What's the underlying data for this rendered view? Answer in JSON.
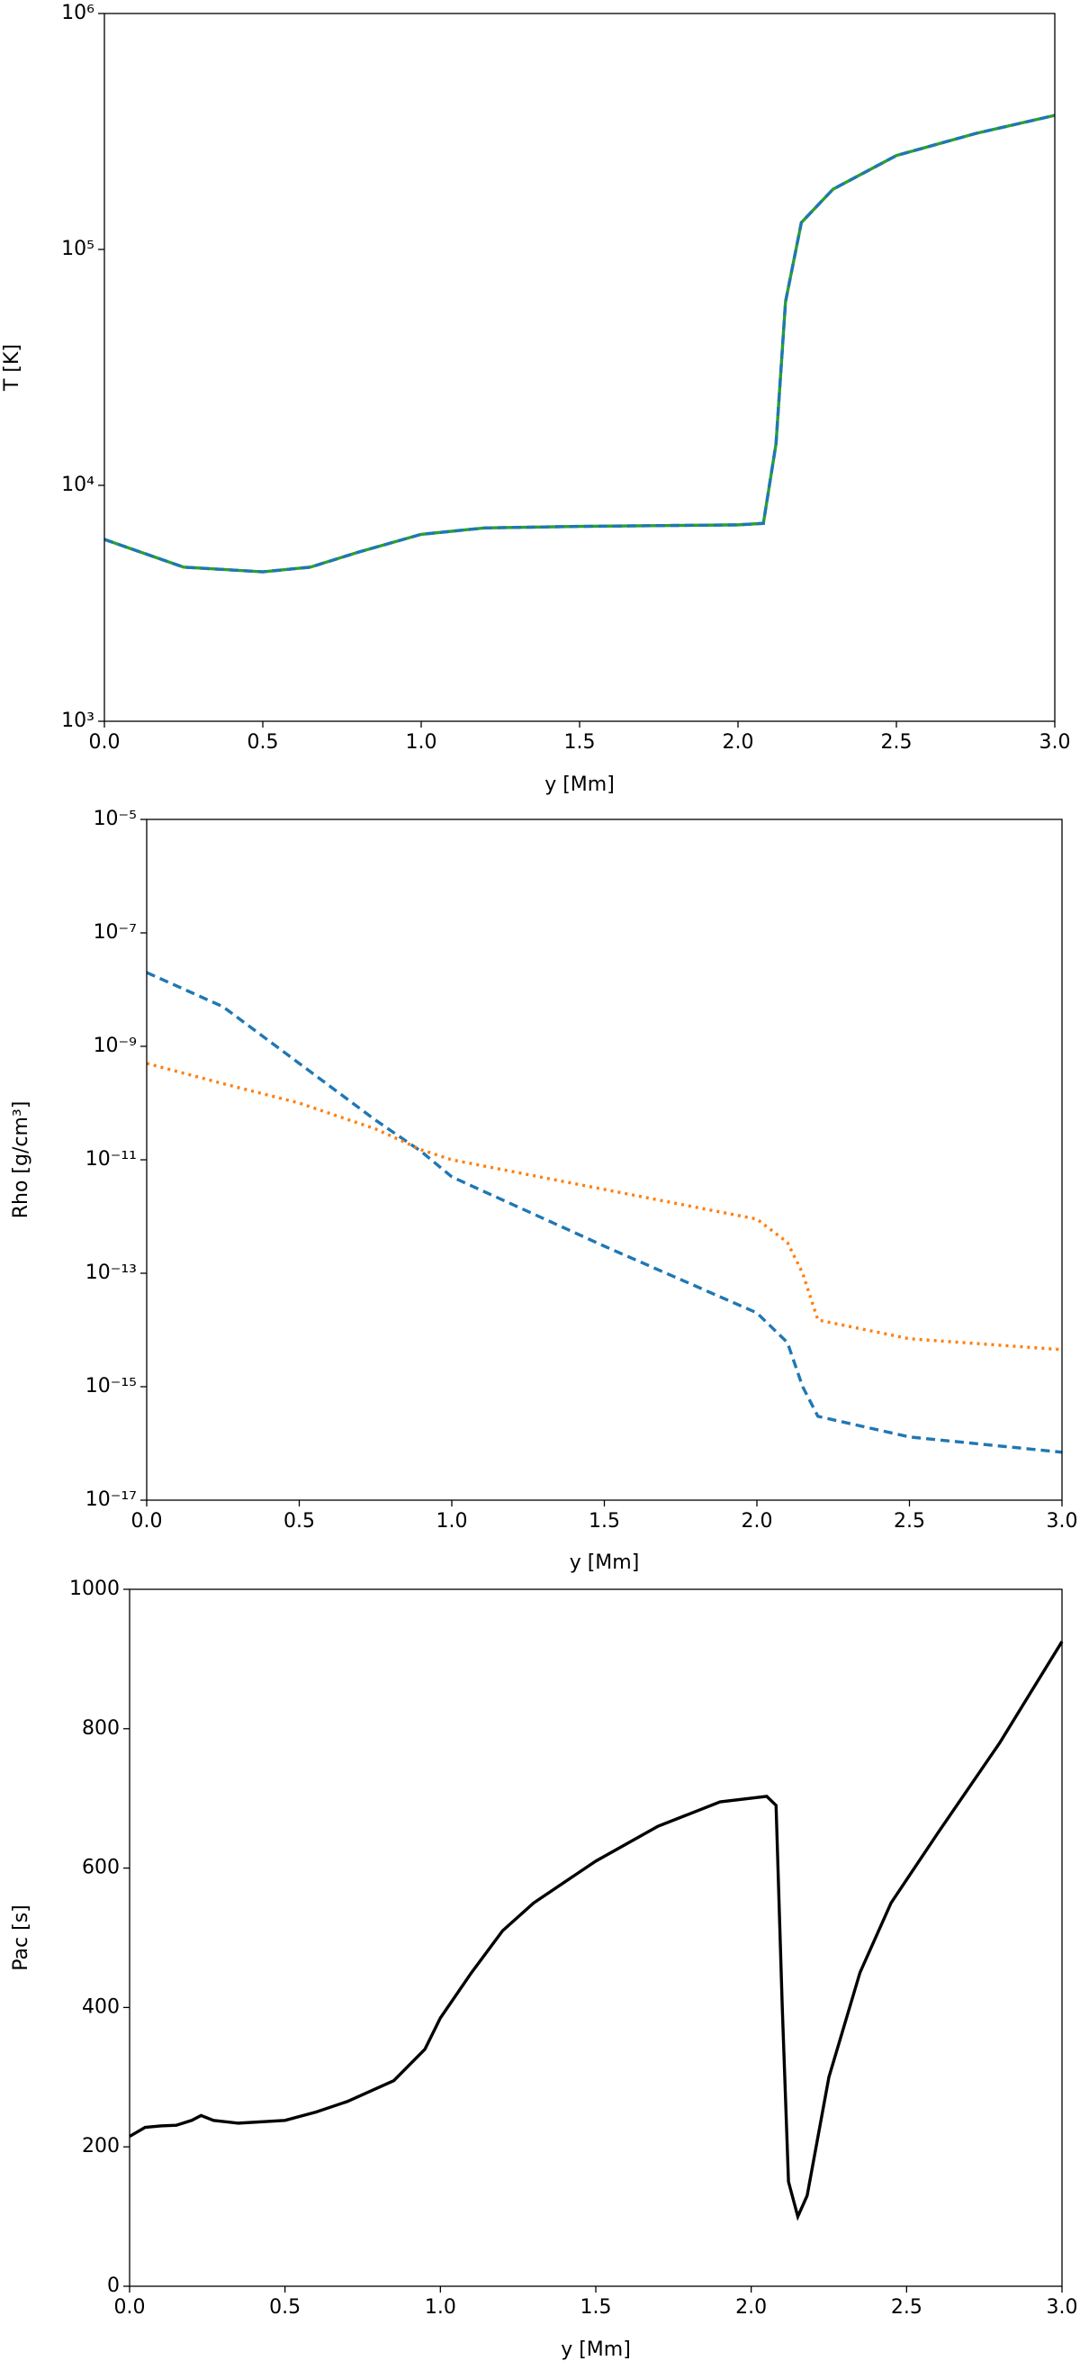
{
  "chart_data": [
    {
      "type": "line",
      "yscale": "log",
      "ylabel": "T [K]",
      "xlabel": "y [Mm]",
      "xlim": [
        0,
        3
      ],
      "ylim": [
        1000,
        1000000
      ],
      "xticks": [
        {
          "value": 0,
          "label": "0.0"
        },
        0.5,
        {
          "value": 1,
          "label": "1.0"
        },
        1.5,
        {
          "value": 2,
          "label": "2.0"
        },
        2.5,
        {
          "value": 3,
          "label": "3.0"
        }
      ],
      "yticks": [
        {
          "value": 1000,
          "label": "10³"
        },
        {
          "value": 10000,
          "label": "10⁴"
        },
        {
          "value": 100000,
          "label": "10⁵"
        },
        {
          "value": 1000000,
          "label": "10⁶"
        }
      ],
      "x": [
        0,
        0.25,
        0.5,
        0.65,
        0.8,
        1.0,
        1.2,
        1.5,
        2.0,
        2.08,
        2.12,
        2.15,
        2.2,
        2.3,
        2.5,
        2.75,
        3.0
      ],
      "series": [
        {
          "color": "#2ca02c",
          "linestyle": "solid",
          "values": [
            5900,
            4500,
            4300,
            4500,
            5200,
            6200,
            6600,
            6700,
            6800,
            6900,
            15000,
            60000,
            130000,
            180000,
            250000,
            310000,
            370000
          ]
        },
        {
          "color": "#1f77b4",
          "linestyle": "dashed",
          "values": [
            5900,
            4500,
            4300,
            4500,
            5200,
            6200,
            6600,
            6700,
            6800,
            6900,
            15000,
            60000,
            130000,
            180000,
            250000,
            310000,
            370000
          ]
        }
      ]
    },
    {
      "type": "line",
      "yscale": "log",
      "ylabel": "Rho  [g/cm³]",
      "xlabel": "y [Mm]",
      "xlim": [
        0,
        3
      ],
      "ylim": [
        1e-17,
        1e-05
      ],
      "xticks": [
        {
          "value": 0,
          "label": "0.0"
        },
        0.5,
        {
          "value": 1,
          "label": "1.0"
        },
        1.5,
        {
          "value": 2,
          "label": "2.0"
        },
        2.5,
        {
          "value": 3,
          "label": "3.0"
        }
      ],
      "yticks": [
        {
          "value": 1e-17,
          "label": "10⁻¹⁷"
        },
        {
          "value": 1e-15,
          "label": "10⁻¹⁵"
        },
        {
          "value": 1e-13,
          "label": "10⁻¹³"
        },
        {
          "value": 1e-11,
          "label": "10⁻¹¹"
        },
        {
          "value": 1e-09,
          "label": "10⁻⁹"
        },
        {
          "value": 1e-07,
          "label": "10⁻⁷"
        },
        {
          "value": 1e-05,
          "label": "10⁻⁵"
        }
      ],
      "x": [
        0,
        0.25,
        0.5,
        0.75,
        0.9,
        1.0,
        1.5,
        2.0,
        2.1,
        2.15,
        2.2,
        2.5,
        3.0
      ],
      "series": [
        {
          "color": "#1f77b4",
          "linestyle": "dashed",
          "values": [
            2e-08,
            5e-09,
            5e-10,
            5e-11,
            1.4e-11,
            5e-12,
            3e-13,
            2e-14,
            6e-15,
            1e-15,
            3e-16,
            1.3e-16,
            7e-17
          ]
        },
        {
          "color": "#ff7f0e",
          "linestyle": "dotted",
          "values": [
            5e-10,
            2.2e-10,
            1e-10,
            3.5e-11,
            1.5e-11,
            1e-11,
            3e-12,
            9e-13,
            3.5e-13,
            1e-13,
            1.5e-14,
            7e-15,
            4.5e-15
          ]
        }
      ]
    },
    {
      "type": "line",
      "yscale": "linear",
      "ylabel": "Pac [s]",
      "xlabel": "y [Mm]",
      "xlim": [
        0,
        3
      ],
      "ylim": [
        0,
        1000
      ],
      "xticks": [
        {
          "value": 0,
          "label": "0.0"
        },
        0.5,
        {
          "value": 1,
          "label": "1.0"
        },
        1.5,
        {
          "value": 2,
          "label": "2.0"
        },
        2.5,
        {
          "value": 3,
          "label": "3.0"
        }
      ],
      "yticks": [
        0,
        200,
        400,
        600,
        800,
        1000
      ],
      "x": [
        0,
        0.05,
        0.1,
        0.15,
        0.2,
        0.23,
        0.27,
        0.35,
        0.5,
        0.6,
        0.7,
        0.85,
        0.95,
        1.0,
        1.1,
        1.2,
        1.3,
        1.5,
        1.7,
        1.9,
        2.05,
        2.08,
        2.1,
        2.12,
        2.15,
        2.18,
        2.25,
        2.35,
        2.45,
        2.6,
        2.8,
        3.0
      ],
      "series": [
        {
          "color": "#000000",
          "linestyle": "solid",
          "values": [
            215,
            228,
            230,
            231,
            238,
            245,
            238,
            234,
            238,
            250,
            265,
            295,
            340,
            385,
            450,
            510,
            550,
            610,
            660,
            695,
            703,
            690,
            400,
            150,
            100,
            130,
            300,
            450,
            550,
            650,
            780,
            925
          ]
        }
      ]
    }
  ]
}
